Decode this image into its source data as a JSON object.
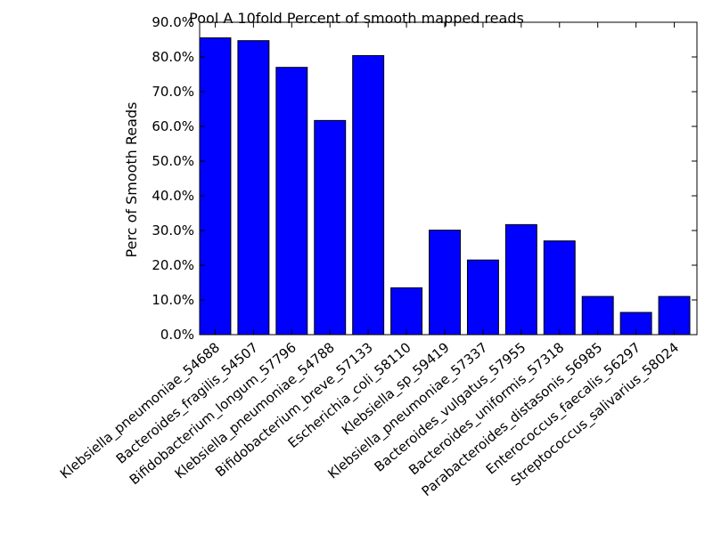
{
  "chart_data": {
    "type": "bar",
    "title": "Pool A 10fold Percent of smooth mapped reads",
    "xlabel": "",
    "ylabel": "Perc of Smooth Reads",
    "ylim": [
      0,
      90
    ],
    "yticks": [
      "0.0%",
      "10.0%",
      "20.0%",
      "30.0%",
      "40.0%",
      "50.0%",
      "60.0%",
      "70.0%",
      "80.0%",
      "90.0%"
    ],
    "categories": [
      "Klebsiella_pneumoniae_54688",
      "Bacteroides_fragilis_54507",
      "Bifidobacterium_longum_57796",
      "Klebsiella_pneumoniae_54788",
      "Bifidobacterium_breve_57133",
      "Escherichia_coli_58110",
      "Klebsiella_sp_59419",
      "Klebsiella_pneumoniae_57337",
      "Bacteroides_vulgatus_57955",
      "Bacteroides_uniformis_57318",
      "Parabacteroides_distasonis_56985",
      "Enterococcus_faecalis_56297",
      "Streptococcus_salivarius_58024"
    ],
    "values": [
      85.5,
      84.7,
      77.0,
      61.7,
      80.4,
      13.5,
      30.1,
      21.5,
      31.7,
      27.0,
      11.0,
      6.4,
      11.0
    ],
    "bar_color": "#0000ff",
    "grid": false,
    "legend": "none"
  }
}
